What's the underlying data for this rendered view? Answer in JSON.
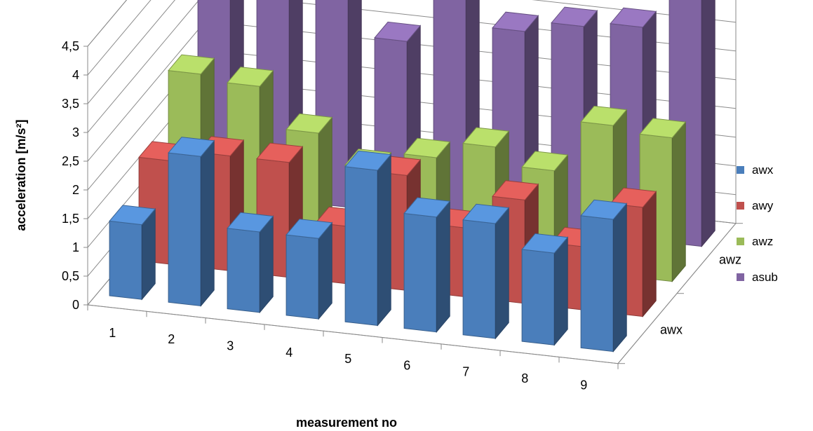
{
  "chart_data": {
    "type": "bar",
    "variant": "3d-column",
    "title": "",
    "xlabel": "measurement no",
    "ylabel": "acceleration [m/s²]",
    "ylim": [
      0,
      4.5
    ],
    "yticks": [
      "0",
      "0,5",
      "1",
      "1,5",
      "2",
      "2,5",
      "3",
      "3,5",
      "4",
      "4,5"
    ],
    "categories": [
      "1",
      "2",
      "3",
      "4",
      "5",
      "6",
      "7",
      "8",
      "9"
    ],
    "depth_labels": [
      "awz",
      "awx"
    ],
    "grid": true,
    "legend_position": "right",
    "series": [
      {
        "name": "awx",
        "color": "#4a7ebb",
        "values": [
          1.3,
          2.6,
          1.4,
          1.4,
          2.7,
          2.0,
          2.0,
          1.6,
          2.3
        ]
      },
      {
        "name": "awy",
        "color": "#c0504d",
        "values": [
          1.8,
          2.0,
          2.0,
          1.0,
          2.0,
          1.2,
          1.8,
          1.1,
          1.9
        ]
      },
      {
        "name": "awz",
        "color": "#9bbb59",
        "values": [
          2.7,
          2.6,
          1.9,
          1.4,
          1.7,
          2.0,
          1.7,
          2.6,
          2.5
        ]
      },
      {
        "name": "asub",
        "color": "#8064a2",
        "values": [
          3.5,
          4.6,
          3.9,
          3.0,
          4.0,
          3.4,
          3.6,
          3.7,
          4.4
        ]
      }
    ]
  }
}
